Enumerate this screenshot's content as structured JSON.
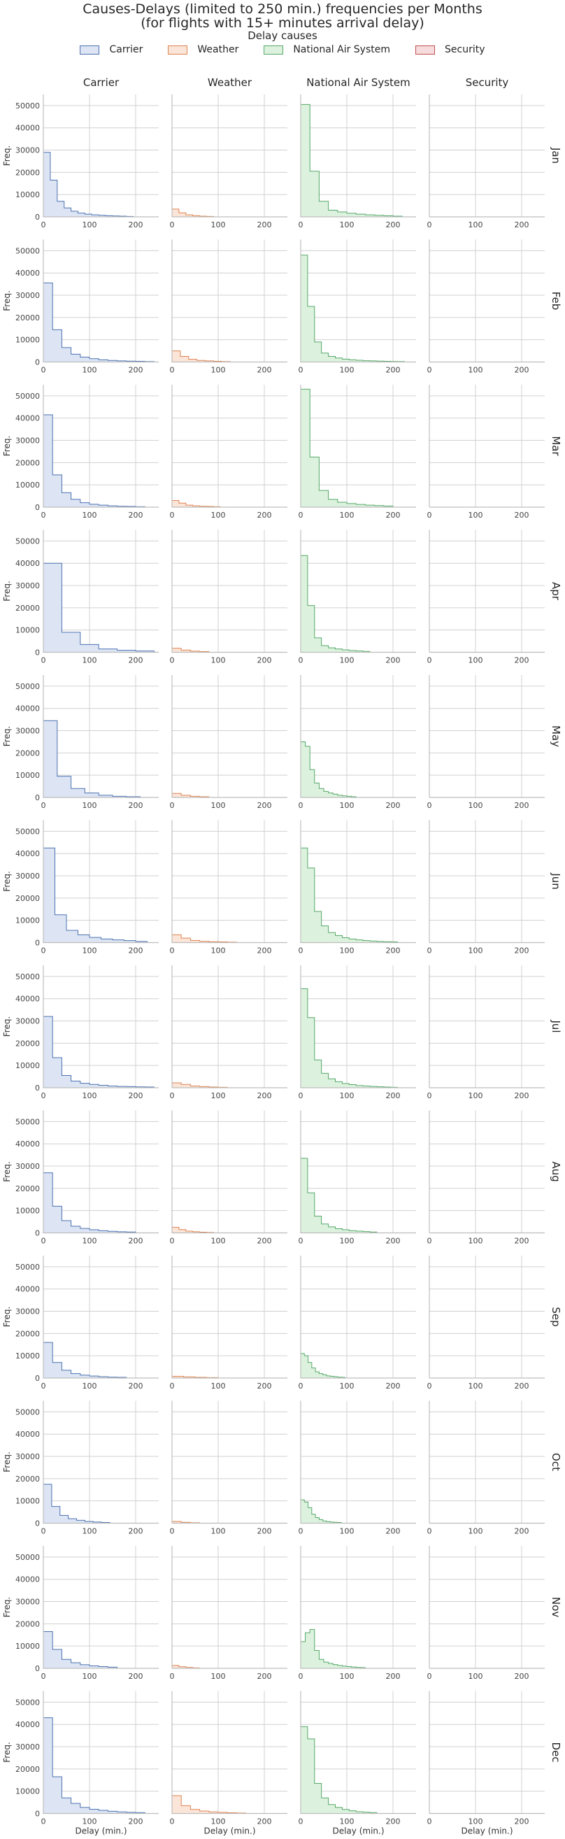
{
  "chart_data": {
    "type": "histogram-facet-grid",
    "title_lines": [
      "Causes-Delays (limited to 250 min.) frequencies per Months",
      "(for flights with 15+ minutes arrival delay)"
    ],
    "legend_title": "Delay causes",
    "columns": [
      "Carrier",
      "Weather",
      "National Air System",
      "Security"
    ],
    "rows": [
      "Jan",
      "Feb",
      "Mar",
      "Apr",
      "May",
      "Jun",
      "Jul",
      "Aug",
      "Sep",
      "Oct",
      "Nov",
      "Dec"
    ],
    "xlabel": "Delay (min.)",
    "ylabel": "Freq.",
    "xlim": [
      0,
      250
    ],
    "ylim": [
      0,
      55000
    ],
    "xticks": [
      0,
      100,
      200
    ],
    "yticks": [
      0,
      10000,
      20000,
      30000,
      40000,
      50000
    ],
    "grid": true,
    "colors": {
      "Carrier": {
        "line": "#4c72b0",
        "fill": "#dde5f4"
      },
      "Weather": {
        "line": "#dd8452",
        "fill": "#fbe5d8"
      },
      "National Air System": {
        "line": "#55a868",
        "fill": "#ddf2de"
      },
      "Security": {
        "line": "#c44e52",
        "fill": "#f6dcdc"
      }
    },
    "series": {
      "Jan": {
        "Carrier": {
          "bin_width": 15,
          "values": [
            29000,
            16500,
            7000,
            4000,
            2500,
            1700,
            1200,
            900,
            700,
            500,
            400,
            300,
            200
          ]
        },
        "Weather": {
          "bin_width": 15,
          "values": [
            3500,
            1800,
            900,
            500,
            300,
            200
          ]
        },
        "National Air System": {
          "bin_width": 20,
          "values": [
            50500,
            20500,
            7000,
            3000,
            2200,
            1600,
            1200,
            900,
            700,
            500,
            300
          ]
        },
        "Security": {
          "bin_width": 25,
          "values": []
        }
      },
      "Feb": {
        "Carrier": {
          "bin_width": 20,
          "values": [
            35500,
            14500,
            6500,
            3500,
            2200,
            1500,
            1000,
            700,
            500,
            400,
            300,
            200
          ]
        },
        "Weather": {
          "bin_width": 18,
          "values": [
            5000,
            2500,
            1200,
            700,
            500,
            300,
            200
          ]
        },
        "National Air System": {
          "bin_width": 15,
          "values": [
            48000,
            25000,
            9000,
            4000,
            2500,
            1800,
            1300,
            1000,
            800,
            600,
            500,
            400,
            300,
            250,
            200
          ]
        },
        "Security": {
          "bin_width": 25,
          "values": []
        }
      },
      "Mar": {
        "Carrier": {
          "bin_width": 20,
          "values": [
            41500,
            14500,
            6500,
            3500,
            2000,
            1300,
            900,
            600,
            400,
            300,
            200
          ]
        },
        "Weather": {
          "bin_width": 15,
          "values": [
            3000,
            1800,
            900,
            600,
            400,
            300,
            200
          ]
        },
        "National Air System": {
          "bin_width": 20,
          "values": [
            53000,
            22500,
            7500,
            3500,
            2200,
            1600,
            1200,
            900,
            700,
            500
          ]
        },
        "Security": {
          "bin_width": 25,
          "values": []
        }
      },
      "Apr": {
        "Carrier": {
          "bin_width": 40,
          "values": [
            40000,
            9000,
            3500,
            1500,
            900,
            600
          ]
        },
        "Weather": {
          "bin_width": 20,
          "values": [
            1800,
            1000,
            500,
            300
          ]
        },
        "National Air System": {
          "bin_width": 15,
          "values": [
            43500,
            21000,
            6500,
            3000,
            2000,
            1500,
            1100,
            800,
            600,
            400
          ]
        },
        "Security": {
          "bin_width": 25,
          "values": []
        }
      },
      "May": {
        "Carrier": {
          "bin_width": 30,
          "values": [
            34500,
            9500,
            4000,
            2000,
            1000,
            500,
            300
          ]
        },
        "Weather": {
          "bin_width": 20,
          "values": [
            1800,
            1000,
            500,
            300
          ]
        },
        "National Air System": {
          "bin_width": 10,
          "values": [
            25000,
            23000,
            12500,
            6500,
            4000,
            2700,
            2000,
            1500,
            1000,
            700,
            500,
            300
          ]
        },
        "Security": {
          "bin_width": 25,
          "values": []
        }
      },
      "Jun": {
        "Carrier": {
          "bin_width": 25,
          "values": [
            42500,
            12500,
            5500,
            3500,
            2300,
            1600,
            1200,
            900,
            500
          ]
        },
        "Weather": {
          "bin_width": 20,
          "values": [
            3500,
            2000,
            1000,
            600,
            400,
            300,
            200
          ]
        },
        "National Air System": {
          "bin_width": 15,
          "values": [
            42500,
            33500,
            14000,
            7500,
            4500,
            3200,
            2200,
            1600,
            1200,
            900,
            700,
            500,
            400,
            300
          ]
        },
        "Security": {
          "bin_width": 25,
          "values": []
        }
      },
      "Jul": {
        "Carrier": {
          "bin_width": 20,
          "values": [
            32000,
            13500,
            5500,
            3000,
            2000,
            1500,
            1100,
            800,
            600,
            500,
            400,
            300
          ]
        },
        "Weather": {
          "bin_width": 20,
          "values": [
            2200,
            1500,
            800,
            500,
            300,
            200
          ]
        },
        "National Air System": {
          "bin_width": 15,
          "values": [
            44500,
            31500,
            12500,
            6500,
            4000,
            2700,
            1900,
            1400,
            1000,
            800,
            600,
            450,
            300,
            200
          ]
        },
        "Security": {
          "bin_width": 25,
          "values": []
        }
      },
      "Aug": {
        "Carrier": {
          "bin_width": 20,
          "values": [
            27000,
            12000,
            5500,
            3000,
            2000,
            1400,
            1000,
            700,
            500,
            400
          ]
        },
        "Weather": {
          "bin_width": 15,
          "values": [
            2500,
            1500,
            800,
            500,
            300,
            200
          ]
        },
        "National Air System": {
          "bin_width": 15,
          "values": [
            33500,
            18000,
            7500,
            4000,
            2700,
            1900,
            1400,
            1000,
            800,
            600,
            400
          ]
        },
        "Security": {
          "bin_width": 25,
          "values": []
        }
      },
      "Sep": {
        "Carrier": {
          "bin_width": 20,
          "values": [
            16000,
            7000,
            3500,
            2000,
            1300,
            900,
            600,
            400,
            300
          ]
        },
        "Weather": {
          "bin_width": 25,
          "values": [
            800,
            500,
            300,
            200
          ]
        },
        "National Air System": {
          "bin_width": 8,
          "values": [
            11000,
            10000,
            7000,
            4500,
            2800,
            2000,
            1500,
            1000,
            800,
            600,
            400,
            300
          ]
        },
        "Security": {
          "bin_width": 25,
          "values": []
        }
      },
      "Oct": {
        "Carrier": {
          "bin_width": 18,
          "values": [
            17500,
            7500,
            3500,
            2000,
            1300,
            800,
            500,
            300
          ]
        },
        "Weather": {
          "bin_width": 20,
          "values": [
            800,
            400,
            200
          ]
        },
        "National Air System": {
          "bin_width": 8,
          "values": [
            10500,
            9500,
            7000,
            4000,
            2500,
            1600,
            1000,
            700,
            500,
            400,
            300
          ]
        },
        "Security": {
          "bin_width": 25,
          "values": []
        }
      },
      "Nov": {
        "Carrier": {
          "bin_width": 20,
          "values": [
            16500,
            8500,
            4000,
            2500,
            1600,
            1100,
            800,
            500
          ]
        },
        "Weather": {
          "bin_width": 15,
          "values": [
            1300,
            700,
            400,
            200
          ]
        },
        "National Air System": {
          "bin_width": 10,
          "values": [
            12000,
            16000,
            17500,
            8000,
            4000,
            2800,
            2200,
            1700,
            1300,
            1000,
            800,
            600,
            400,
            300
          ]
        },
        "Security": {
          "bin_width": 25,
          "values": []
        }
      },
      "Dec": {
        "Carrier": {
          "bin_width": 20,
          "values": [
            43000,
            16500,
            7000,
            4500,
            2700,
            1900,
            1400,
            1000,
            700,
            500,
            400
          ]
        },
        "Weather": {
          "bin_width": 20,
          "values": [
            8000,
            3500,
            1800,
            1100,
            700,
            500,
            300,
            200
          ]
        },
        "National Air System": {
          "bin_width": 15,
          "values": [
            39000,
            33500,
            13500,
            7000,
            4000,
            2700,
            1800,
            1200,
            800,
            600,
            400
          ]
        },
        "Security": {
          "bin_width": 25,
          "values": []
        }
      }
    }
  }
}
